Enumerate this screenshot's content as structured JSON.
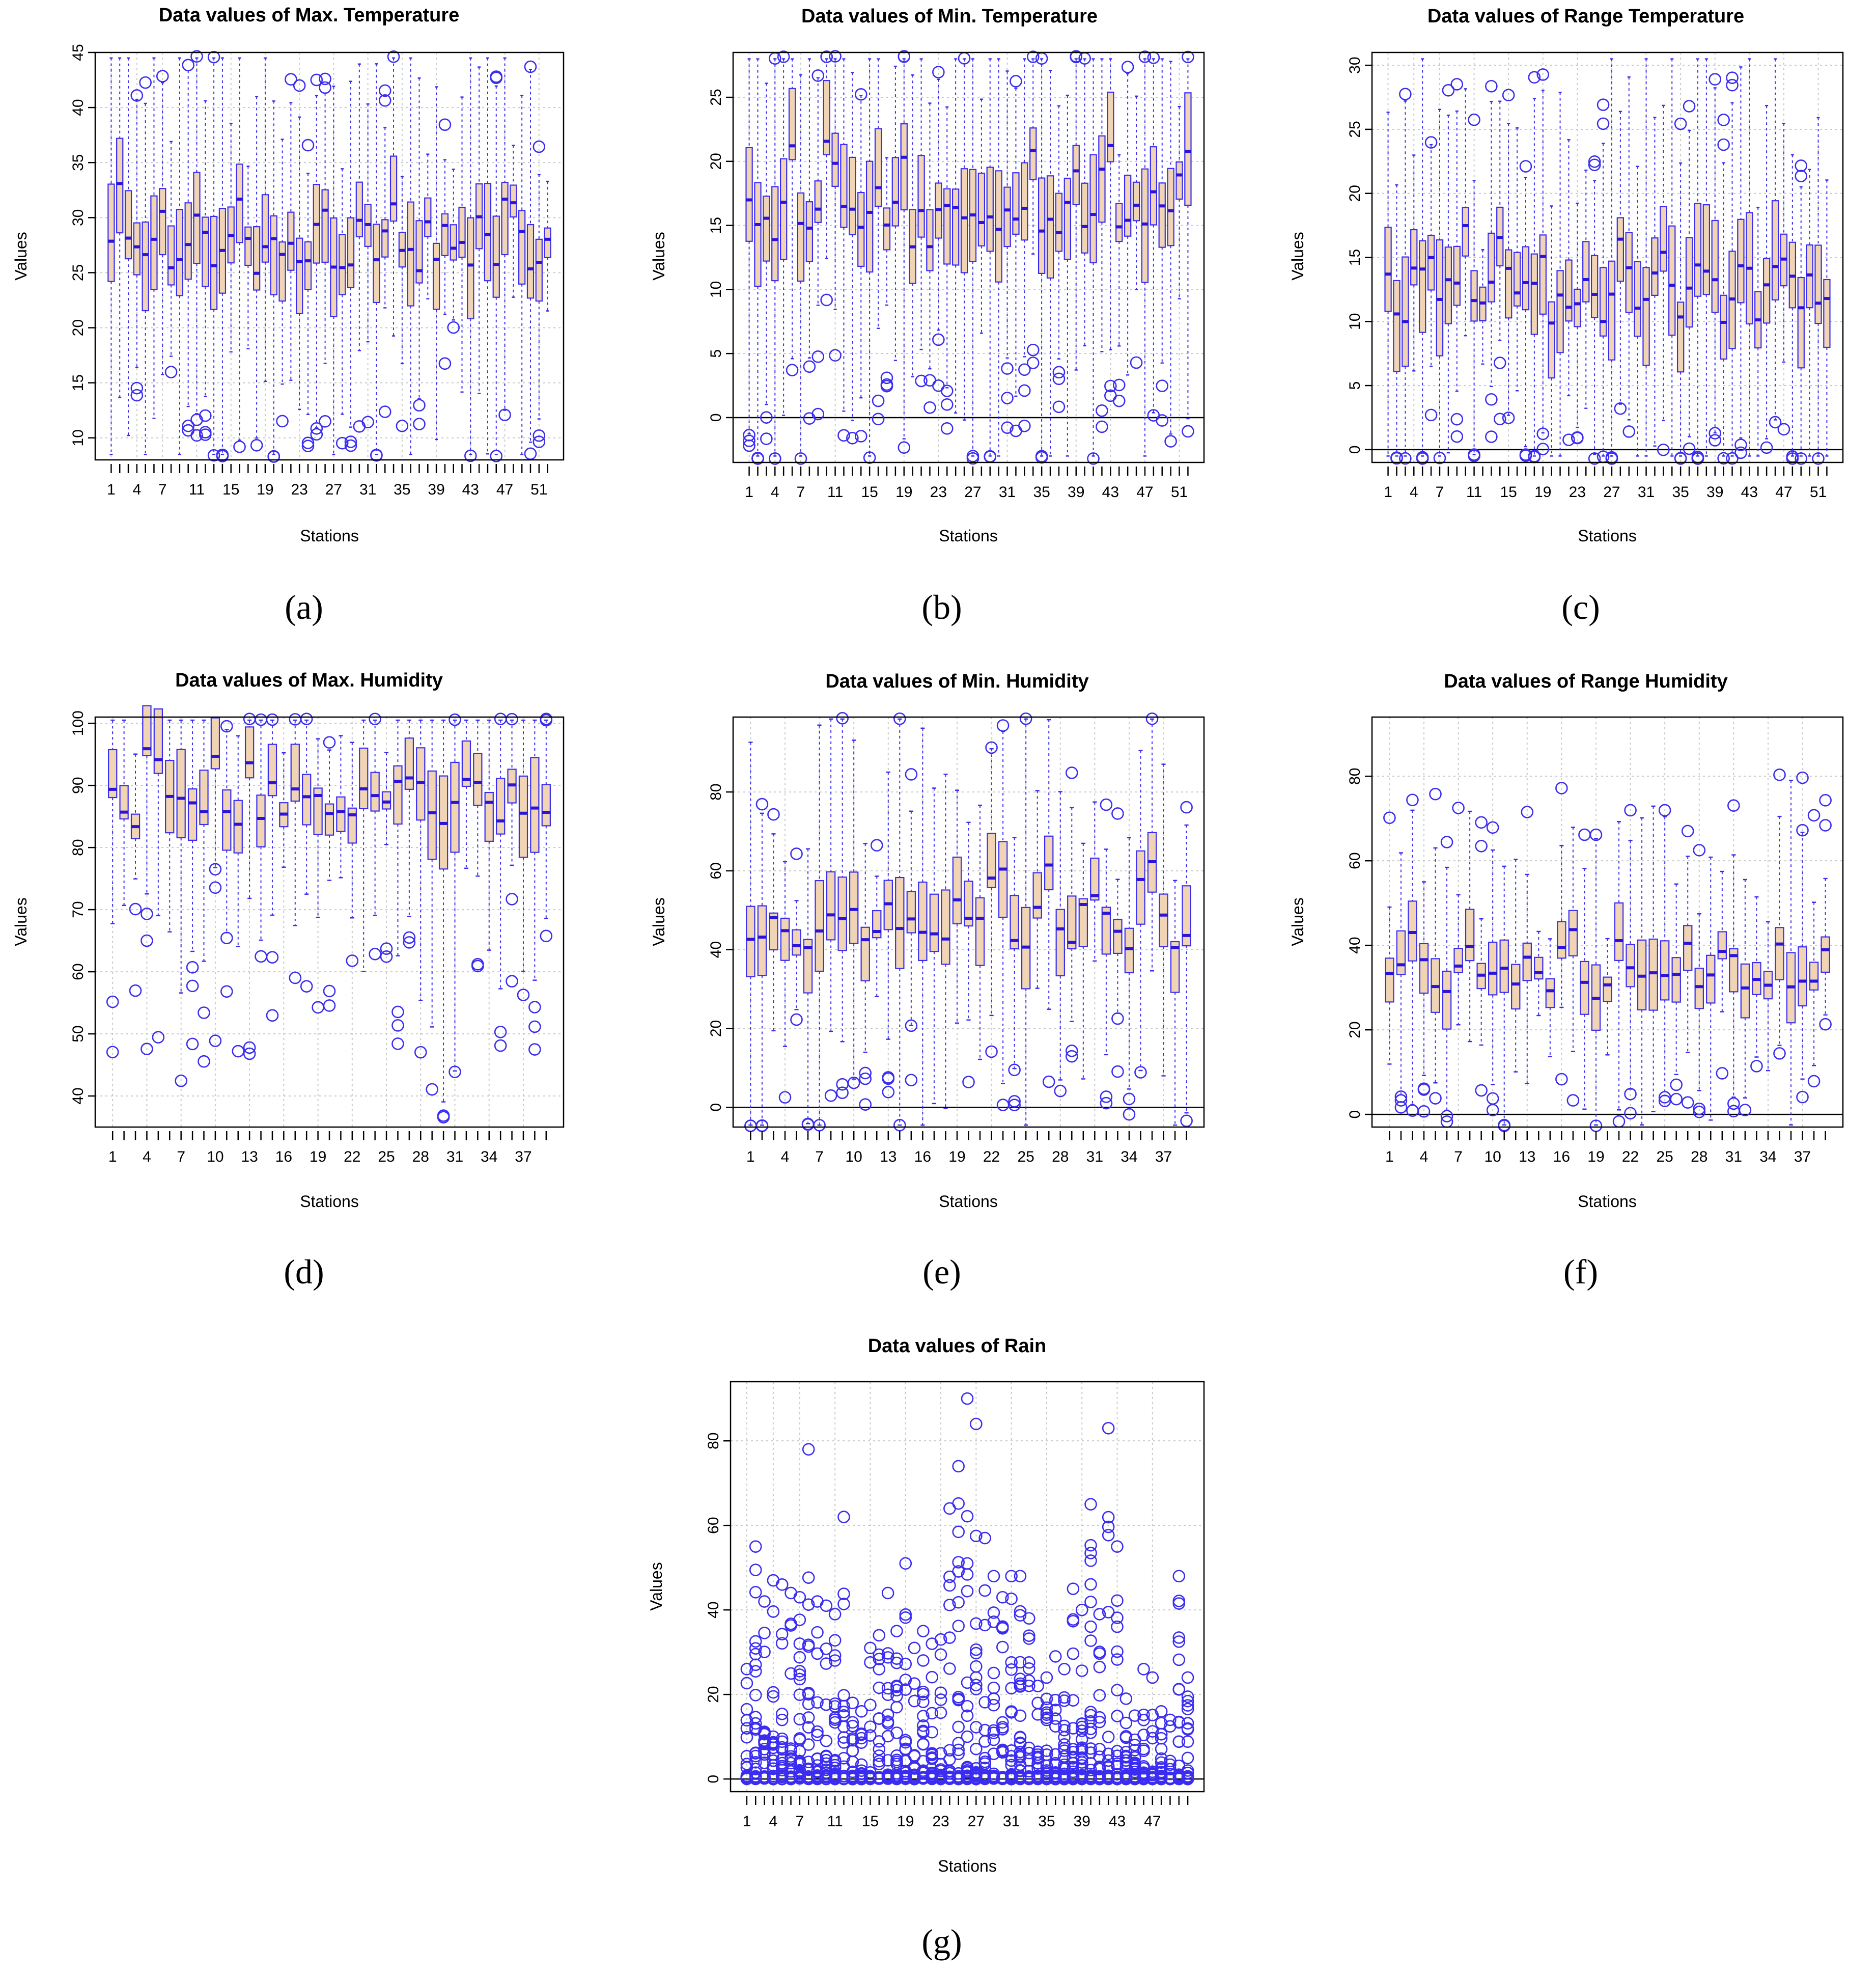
{
  "figure": {
    "caption_labels": [
      "(a)",
      "(b)",
      "(c)",
      "(d)",
      "(e)",
      "(f)",
      "(g)"
    ]
  },
  "colors": {
    "box_fill": "#f0d4b4",
    "stroke": "#3a2df0",
    "median": "#2a14d8",
    "grid": "#c8c8c8"
  },
  "chart_data": [
    {
      "type": "boxplot",
      "caption": "(a)",
      "title": "Data values of Max. Temperature",
      "xlabel": "Stations",
      "ylabel": "Values",
      "n_stations": 52,
      "x_tick_labels": [
        "1",
        "4",
        "7",
        "11",
        "15",
        "19",
        "23",
        "27",
        "31",
        "35",
        "39",
        "43",
        "47",
        "51"
      ],
      "ylim": [
        8,
        45
      ],
      "y_ticks": [
        10,
        15,
        20,
        25,
        30,
        35,
        40,
        45
      ],
      "zero_line": false,
      "box_summary": {
        "median_range": [
          21,
          35
        ],
        "q1_range": [
          18,
          31
        ],
        "q3_range": [
          23,
          37.5
        ],
        "whisker_low_range": [
          9,
          25
        ],
        "whisker_high_range": [
          30,
          44
        ]
      }
    },
    {
      "type": "boxplot",
      "caption": "(b)",
      "title": "Data values of Min. Temperature",
      "xlabel": "Stations",
      "ylabel": "Values",
      "n_stations": 52,
      "x_tick_labels": [
        "1",
        "4",
        "7",
        "11",
        "15",
        "19",
        "23",
        "27",
        "31",
        "35",
        "39",
        "43",
        "47",
        "51"
      ],
      "ylim": [
        -3.5,
        28.5
      ],
      "y_ticks": [
        0,
        5,
        10,
        15,
        20,
        25
      ],
      "zero_line": true,
      "box_summary": {
        "median_range": [
          10,
          23
        ],
        "q1_range": [
          6.5,
          21
        ],
        "q3_range": [
          11,
          24.5
        ],
        "whisker_low_range": [
          -2,
          12
        ],
        "whisker_high_range": [
          20,
          27.5
        ]
      }
    },
    {
      "type": "boxplot",
      "caption": "(c)",
      "title": "Data values of Range Temperature",
      "xlabel": "Stations",
      "ylabel": "Values",
      "n_stations": 52,
      "x_tick_labels": [
        "1",
        "4",
        "7",
        "11",
        "15",
        "19",
        "23",
        "27",
        "31",
        "35",
        "39",
        "43",
        "47",
        "51"
      ],
      "ylim": [
        -1,
        31
      ],
      "y_ticks": [
        0,
        5,
        10,
        15,
        20,
        25,
        30
      ],
      "zero_line": true,
      "box_summary": {
        "median_range": [
          6,
          20
        ],
        "q1_range": [
          5.5,
          17
        ],
        "q3_range": [
          7,
          22.5
        ],
        "whisker_low_range": [
          0,
          8
        ],
        "whisker_high_range": [
          10,
          29.5
        ]
      }
    },
    {
      "type": "boxplot",
      "caption": "(d)",
      "title": "Data values of Max. Humidity",
      "xlabel": "Stations",
      "ylabel": "Values",
      "n_stations": 39,
      "x_tick_labels": [
        "1",
        "4",
        "7",
        "10",
        "13",
        "16",
        "19",
        "22",
        "25",
        "28",
        "31",
        "34",
        "37"
      ],
      "ylim": [
        35,
        101
      ],
      "y_ticks": [
        40,
        50,
        60,
        70,
        80,
        90,
        100
      ],
      "zero_line": false,
      "box_summary": {
        "median_range": [
          76,
          100
        ],
        "q1_range": [
          71,
          98
        ],
        "q3_range": [
          84,
          100
        ],
        "whisker_low_range": [
          37,
          95
        ],
        "whisker_high_range": [
          94,
          100
        ]
      }
    },
    {
      "type": "boxplot",
      "caption": "(e)",
      "title": "Data values of Min. Humidity",
      "xlabel": "Stations",
      "ylabel": "Values",
      "n_stations": 39,
      "x_tick_labels": [
        "1",
        "4",
        "7",
        "10",
        "13",
        "16",
        "19",
        "22",
        "25",
        "28",
        "31",
        "34",
        "37"
      ],
      "ylim": [
        -5,
        99
      ],
      "y_ticks": [
        0,
        20,
        40,
        60,
        80
      ],
      "zero_line": true,
      "box_summary": {
        "median_range": [
          28,
          68
        ],
        "q1_range": [
          24,
          55
        ],
        "q3_range": [
          36,
          70
        ],
        "whisker_low_range": [
          0,
          30
        ],
        "whisker_high_range": [
          55,
          95
        ]
      }
    },
    {
      "type": "boxplot",
      "caption": "(f)",
      "title": "Data values of Range Humidity",
      "xlabel": "Stations",
      "ylabel": "Values",
      "n_stations": 39,
      "x_tick_labels": [
        "1",
        "4",
        "7",
        "10",
        "13",
        "16",
        "19",
        "22",
        "25",
        "28",
        "31",
        "34",
        "37"
      ],
      "ylim": [
        -3,
        94
      ],
      "y_ticks": [
        0,
        20,
        40,
        60,
        80
      ],
      "zero_line": true,
      "box_summary": {
        "median_range": [
          20,
          47
        ],
        "q1_range": [
          14,
          43
        ],
        "q3_range": [
          28,
          55
        ],
        "whisker_low_range": [
          1,
          22
        ],
        "whisker_high_range": [
          50,
          75
        ]
      }
    },
    {
      "type": "stripplot",
      "caption": "(g)",
      "title": "Data values of Rain",
      "xlabel": "Stations",
      "ylabel": "Values",
      "n_stations": 51,
      "x_tick_labels": [
        "1",
        "4",
        "7",
        "11",
        "15",
        "19",
        "23",
        "27",
        "31",
        "35",
        "39",
        "43",
        "47"
      ],
      "ylim": [
        -3,
        94
      ],
      "y_ticks": [
        0,
        20,
        40,
        60,
        80
      ],
      "zero_line": true,
      "max_values_per_station": [
        26,
        55,
        42,
        47,
        46,
        44,
        43,
        78,
        42,
        41,
        39,
        62,
        18,
        16,
        31,
        34,
        44,
        35,
        51,
        31,
        35,
        32,
        33,
        64,
        74,
        90,
        84,
        57,
        48,
        43,
        48,
        48,
        38,
        22,
        24,
        29,
        26,
        45,
        40,
        65,
        39,
        83,
        55,
        19,
        15,
        26,
        24,
        16,
        14,
        48,
        24
      ]
    }
  ]
}
